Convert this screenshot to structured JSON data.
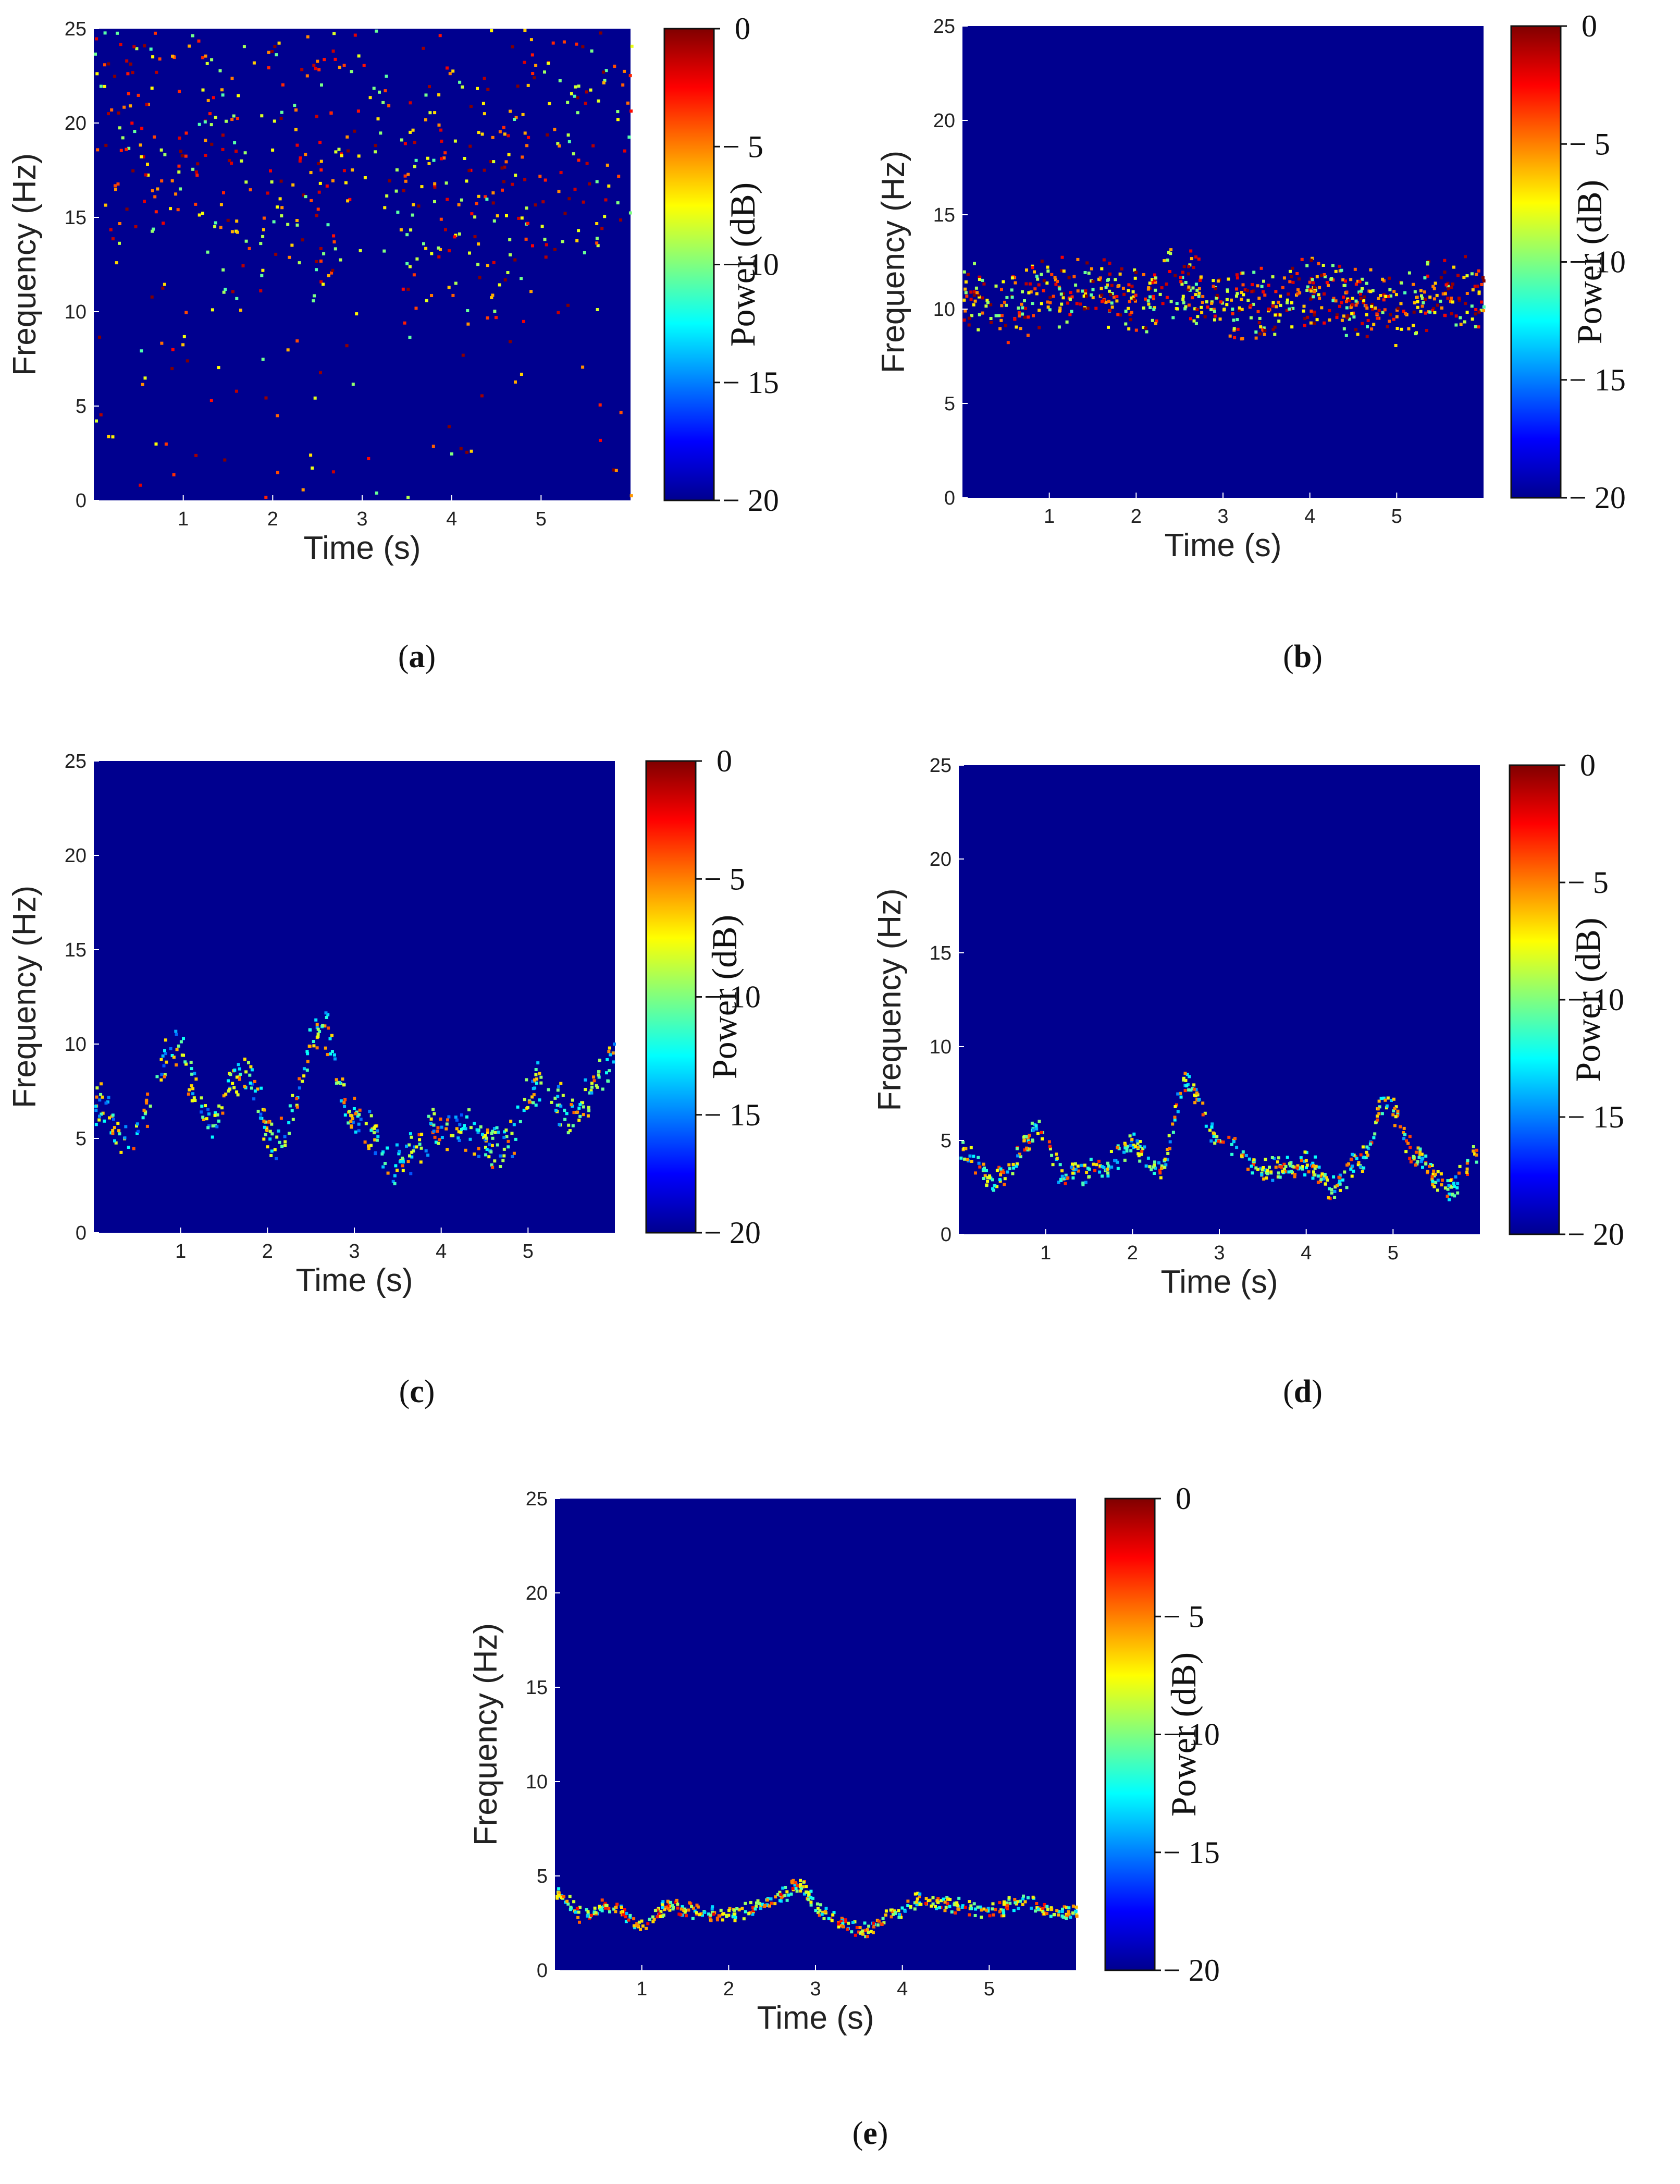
{
  "chart_data": [
    {
      "type": "heatmap",
      "panel": "a",
      "caption": "a",
      "xlabel": "Time (s)",
      "ylabel": "Frequency (Hz)",
      "xlim": [
        0,
        6
      ],
      "ylim": [
        0,
        25
      ],
      "xticks": [
        "1",
        "2",
        "3",
        "4",
        "5"
      ],
      "yticks": [
        "0",
        "5",
        "10",
        "15",
        "20",
        "25"
      ],
      "colorbar": {
        "label": "Power (dB)",
        "ticks": [
          "0",
          "− 5",
          "− 10",
          "− 15",
          "− 20"
        ],
        "range": [
          -20,
          0
        ]
      },
      "pattern": "scattered",
      "ridge": [
        [
          0,
          21
        ],
        [
          0.5,
          19
        ],
        [
          1,
          22
        ],
        [
          1.5,
          16
        ],
        [
          2,
          18
        ],
        [
          2.5,
          17
        ],
        [
          3,
          23
        ],
        [
          3.5,
          15
        ],
        [
          4,
          17
        ],
        [
          4.5,
          16
        ],
        [
          5,
          20
        ],
        [
          5.5,
          18
        ],
        [
          6,
          21
        ]
      ],
      "spread": 8,
      "points": 620,
      "power_mean": -5
    },
    {
      "type": "heatmap",
      "panel": "b",
      "caption": "b",
      "xlabel": "Time (s)",
      "ylabel": "Frequency (Hz)",
      "xlim": [
        0,
        6
      ],
      "ylim": [
        0,
        25
      ],
      "xticks": [
        "1",
        "2",
        "3",
        "4",
        "5"
      ],
      "yticks": [
        "0",
        "5",
        "10",
        "15",
        "20",
        "25"
      ],
      "colorbar": {
        "label": "Power (dB)",
        "ticks": [
          "0",
          "− 5",
          "− 10",
          "− 15",
          "− 20"
        ],
        "range": [
          -20,
          0
        ]
      },
      "pattern": "band",
      "ridge": [
        [
          0,
          11
        ],
        [
          0.5,
          10
        ],
        [
          1,
          11
        ],
        [
          1.5,
          11
        ],
        [
          2,
          10.5
        ],
        [
          2.5,
          11.5
        ],
        [
          3,
          10
        ],
        [
          3.5,
          10.5
        ],
        [
          4,
          11
        ],
        [
          4.5,
          10.5
        ],
        [
          5,
          10
        ],
        [
          5.5,
          11
        ],
        [
          6,
          11
        ]
      ],
      "spread": 2.2,
      "points": 700,
      "power_mean": -5
    },
    {
      "type": "heatmap",
      "panel": "c",
      "caption": "c",
      "xlabel": "Time (s)",
      "ylabel": "Frequency (Hz)",
      "xlim": [
        0,
        6
      ],
      "ylim": [
        0,
        25
      ],
      "xticks": [
        "1",
        "2",
        "3",
        "4",
        "5"
      ],
      "yticks": [
        "0",
        "5",
        "10",
        "15",
        "20",
        "25"
      ],
      "colorbar": {
        "label": "Power (dB)",
        "ticks": [
          "0",
          "− 5",
          "− 10",
          "− 15",
          "− 20"
        ],
        "range": [
          -20,
          0
        ]
      },
      "pattern": "ridge",
      "ridge": [
        [
          0,
          7
        ],
        [
          0.4,
          5
        ],
        [
          0.9,
          10
        ],
        [
          1.3,
          6
        ],
        [
          1.7,
          8.5
        ],
        [
          2.1,
          5
        ],
        [
          2.6,
          11
        ],
        [
          3.0,
          6
        ],
        [
          3.5,
          3.8
        ],
        [
          3.9,
          5.5
        ],
        [
          4.3,
          5.5
        ],
        [
          4.7,
          4.5
        ],
        [
          5.1,
          8
        ],
        [
          5.5,
          6.5
        ],
        [
          6,
          9.5
        ]
      ],
      "spread": 1.4,
      "points": 520,
      "power_mean": -10
    },
    {
      "type": "heatmap",
      "panel": "d",
      "caption": "d",
      "xlabel": "Time (s)",
      "ylabel": "Frequency (Hz)",
      "xlim": [
        0,
        6
      ],
      "ylim": [
        0,
        25
      ],
      "xticks": [
        "1",
        "2",
        "3",
        "4",
        "5"
      ],
      "yticks": [
        "0",
        "5",
        "10",
        "15",
        "20",
        "25"
      ],
      "colorbar": {
        "label": "Power (dB)",
        "ticks": [
          "0",
          "− 5",
          "− 10",
          "− 15",
          "− 20"
        ],
        "range": [
          -20,
          0
        ]
      },
      "pattern": "ridge",
      "ridge": [
        [
          0,
          4.5
        ],
        [
          0.4,
          3
        ],
        [
          0.9,
          5.5
        ],
        [
          1.2,
          3.2
        ],
        [
          1.6,
          3.5
        ],
        [
          2,
          4.8
        ],
        [
          2.3,
          3.5
        ],
        [
          2.6,
          8
        ],
        [
          3,
          5
        ],
        [
          3.5,
          3.5
        ],
        [
          4,
          3.8
        ],
        [
          4.3,
          2.5
        ],
        [
          4.6,
          4
        ],
        [
          4.9,
          7
        ],
        [
          5.3,
          4
        ],
        [
          5.6,
          2.5
        ],
        [
          6,
          4.5
        ]
      ],
      "spread": 0.8,
      "points": 560,
      "power_mean": -9
    },
    {
      "type": "heatmap",
      "panel": "e",
      "caption": "e",
      "xlabel": "Time (s)",
      "ylabel": "Frequency (Hz)",
      "xlim": [
        0,
        6
      ],
      "ylim": [
        0,
        25
      ],
      "xticks": [
        "1",
        "2",
        "3",
        "4",
        "5"
      ],
      "yticks": [
        "0",
        "5",
        "10",
        "15",
        "20",
        "25"
      ],
      "colorbar": {
        "label": "Power (dB)",
        "ticks": [
          "0",
          "− 5",
          "− 10",
          "− 15",
          "− 20"
        ],
        "range": [
          -20,
          0
        ]
      },
      "pattern": "ridge",
      "ridge": [
        [
          0,
          4.2
        ],
        [
          0.3,
          3
        ],
        [
          0.6,
          3.5
        ],
        [
          1,
          2.5
        ],
        [
          1.3,
          3.5
        ],
        [
          1.6,
          3.2
        ],
        [
          2,
          3
        ],
        [
          2.4,
          3.5
        ],
        [
          2.8,
          4.5
        ],
        [
          3.1,
          3
        ],
        [
          3.5,
          2.2
        ],
        [
          3.9,
          3
        ],
        [
          4.2,
          3.8
        ],
        [
          4.6,
          3.5
        ],
        [
          5,
          3.2
        ],
        [
          5.4,
          3.8
        ],
        [
          5.8,
          3
        ],
        [
          6,
          3.2
        ]
      ],
      "spread": 0.5,
      "points": 520,
      "power_mean": -8
    }
  ]
}
